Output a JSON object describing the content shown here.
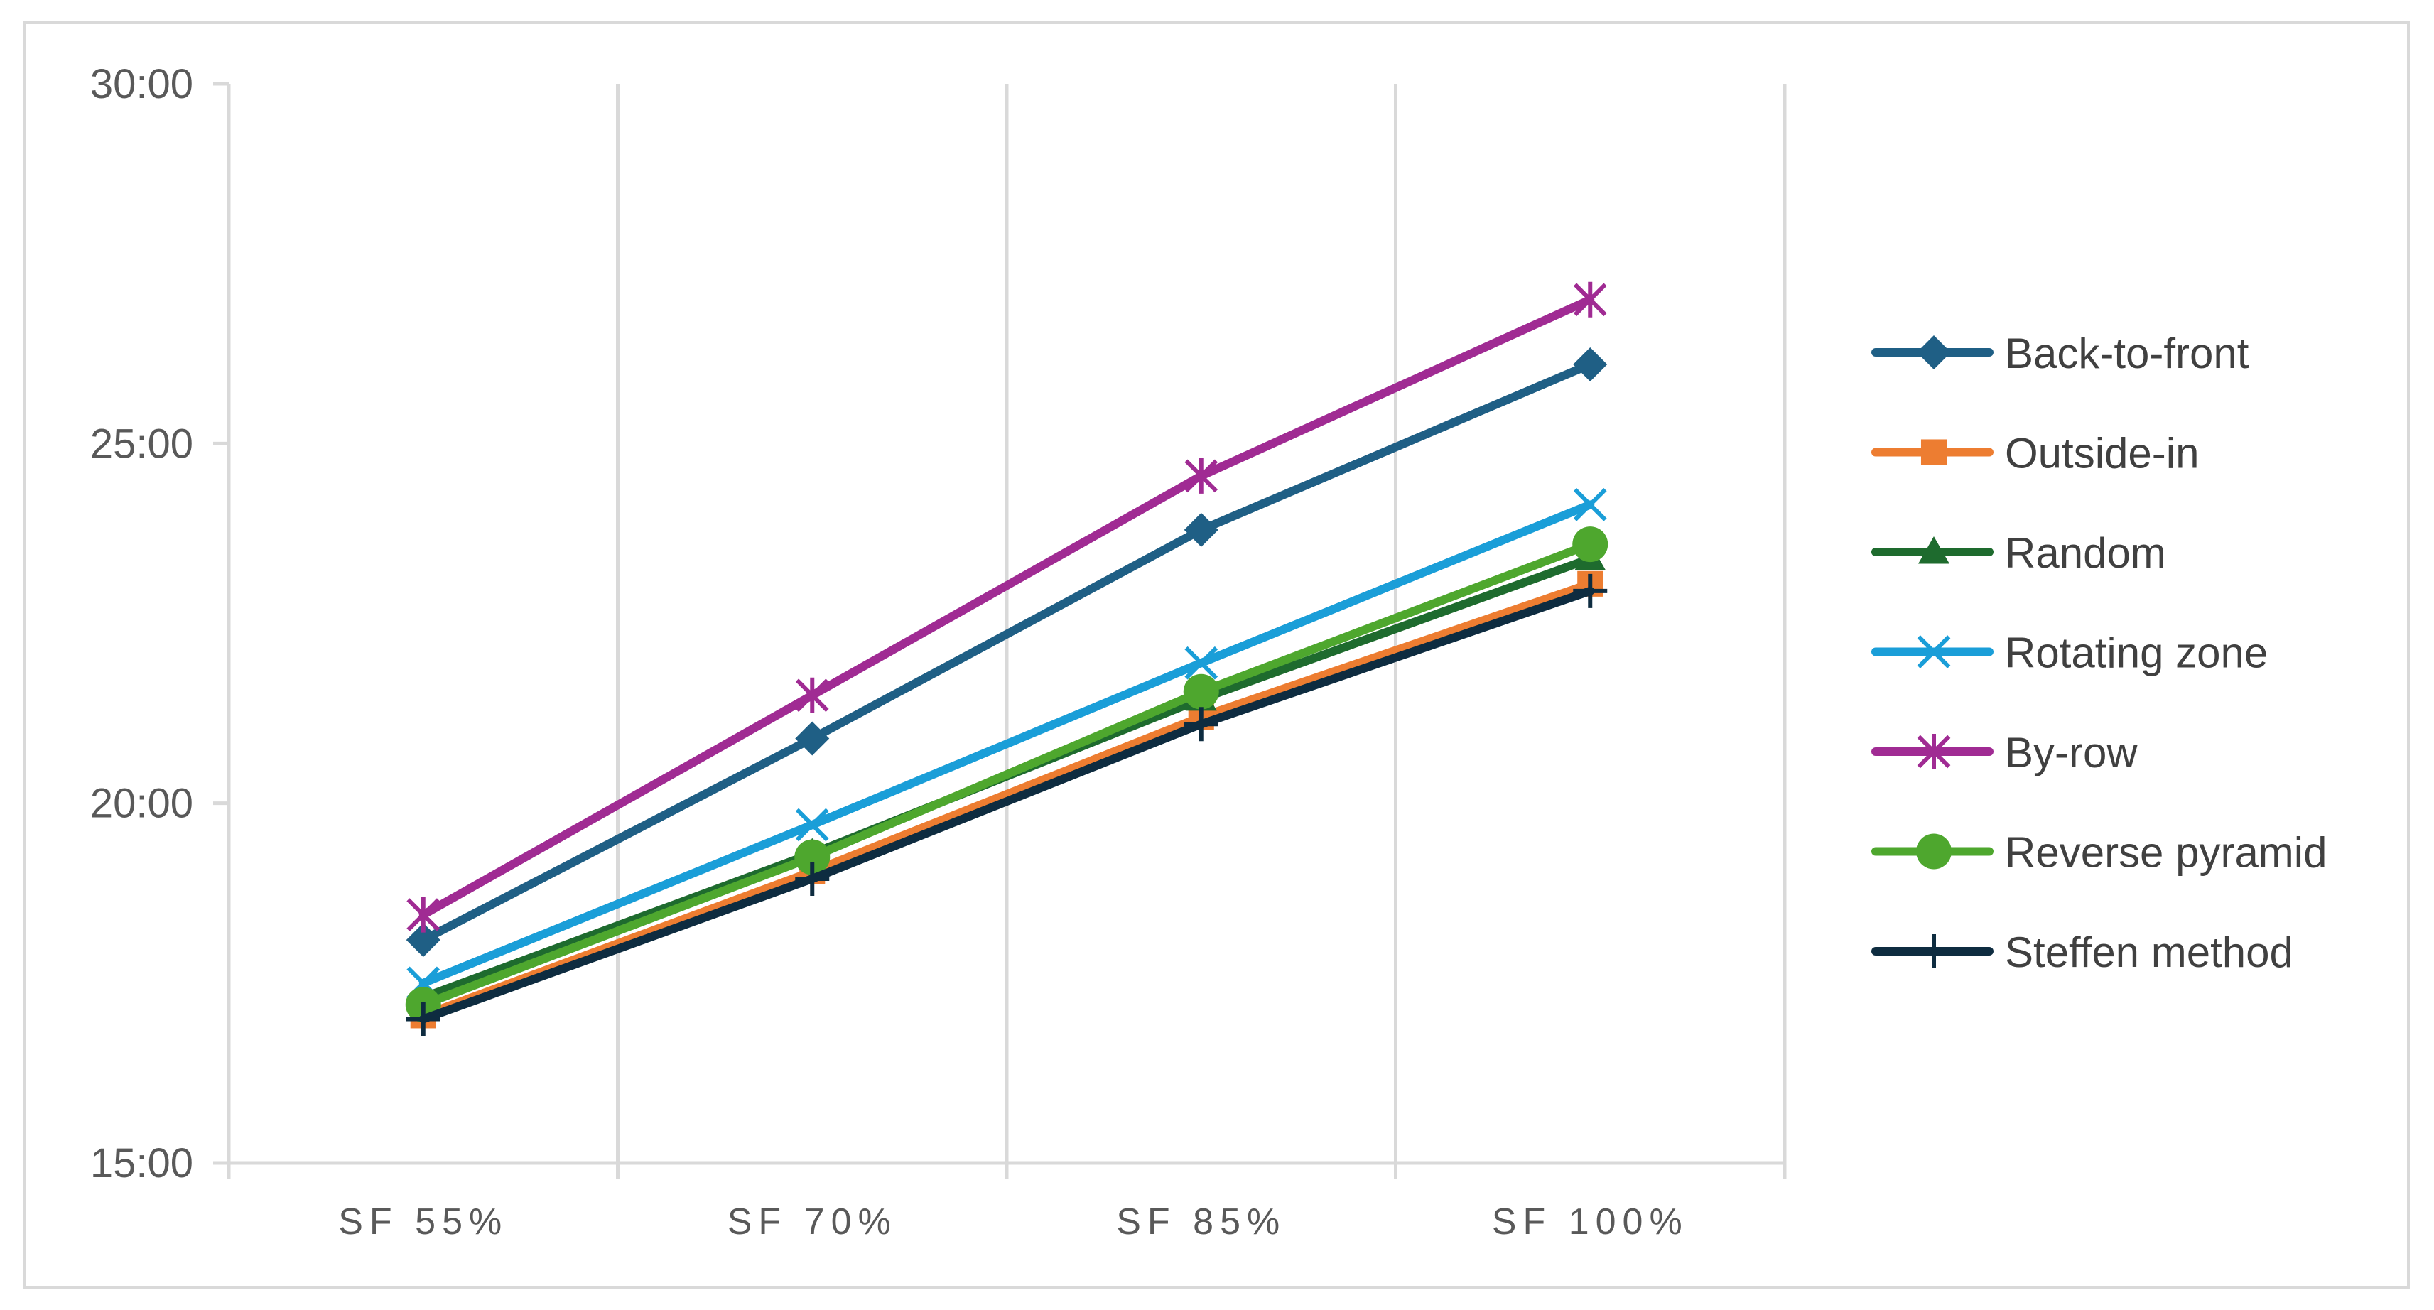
{
  "chart_data": {
    "type": "line",
    "title": "",
    "xlabel": "",
    "ylabel": "",
    "categories": [
      "SF 55%",
      "SF 70%",
      "SF 85%",
      "SF 100%"
    ],
    "y_tick_labels": [
      "15:00",
      "20:00",
      "25:00",
      "30:00"
    ],
    "ylim_minutes": [
      15,
      30
    ],
    "grid": "vertical",
    "legend_position": "right",
    "series": [
      {
        "name": "Back-to-front",
        "color": "#1f5f85",
        "marker": "diamond",
        "values_minutes": [
          18.1,
          20.9,
          23.8,
          26.1
        ]
      },
      {
        "name": "Outside-in",
        "color": "#ed7d31",
        "marker": "square",
        "values_minutes": [
          17.05,
          19.05,
          21.2,
          23.05
        ]
      },
      {
        "name": "Random",
        "color": "#1e6b2e",
        "marker": "triangle",
        "values_minutes": [
          17.3,
          19.3,
          21.45,
          23.4
        ]
      },
      {
        "name": "Rotating zone",
        "color": "#1a9ed8",
        "marker": "x",
        "values_minutes": [
          17.5,
          19.7,
          21.95,
          24.15
        ]
      },
      {
        "name": "By-row",
        "color": "#a02b93",
        "marker": "asterisk",
        "values_minutes": [
          18.45,
          21.5,
          24.55,
          27.0
        ]
      },
      {
        "name": "Reverse pyramid",
        "color": "#4ea72e",
        "marker": "circle",
        "values_minutes": [
          17.2,
          19.25,
          21.55,
          23.6
        ]
      },
      {
        "name": "Steffen method",
        "color": "#0e2c40",
        "marker": "plus",
        "values_minutes": [
          17.0,
          18.95,
          21.1,
          22.95
        ]
      }
    ]
  }
}
